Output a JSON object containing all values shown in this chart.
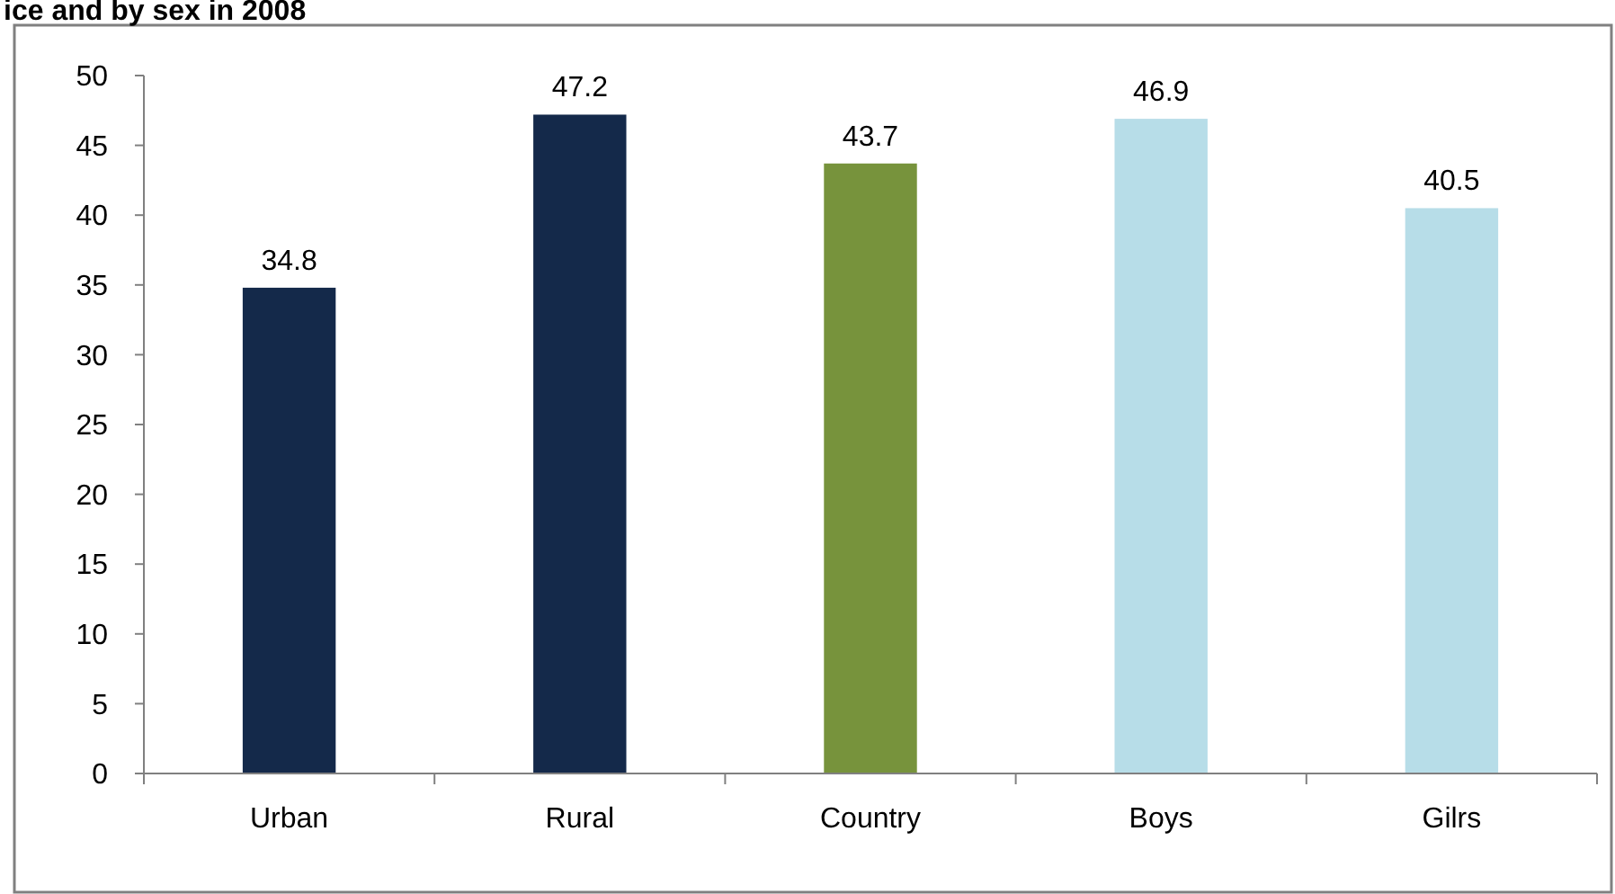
{
  "chart_data": {
    "type": "bar",
    "title": "ice and by sex in 2008",
    "categories": [
      "Urban",
      "Rural",
      "Country",
      "Boys",
      "Gilrs"
    ],
    "values": [
      34.8,
      47.2,
      43.7,
      46.9,
      40.5
    ],
    "colors": [
      "#14294a",
      "#14294a",
      "#77933c",
      "#b7dde8",
      "#b7dde8"
    ],
    "ylim": [
      0,
      50
    ],
    "yticks": [
      0,
      5,
      10,
      15,
      20,
      25,
      30,
      35,
      40,
      45,
      50
    ],
    "data_labels": true
  }
}
